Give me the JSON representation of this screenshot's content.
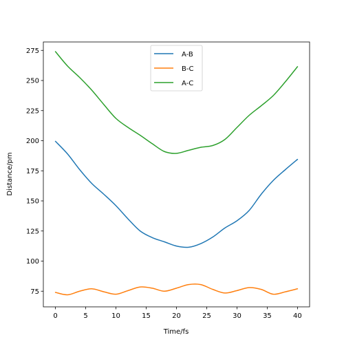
{
  "chart_data": {
    "type": "line",
    "xlabel": "Time/fs",
    "ylabel": "Distance/pm",
    "xlim": [
      -2,
      42
    ],
    "ylim": [
      62,
      282
    ],
    "xticks": [
      0,
      5,
      10,
      15,
      20,
      25,
      30,
      35,
      40
    ],
    "yticks": [
      75,
      100,
      125,
      150,
      175,
      200,
      225,
      250,
      275
    ],
    "grid": false,
    "legend_position": "upper center",
    "x": [
      0,
      2,
      4,
      6,
      8,
      10,
      12,
      14,
      16,
      18,
      20,
      22,
      24,
      26,
      28,
      30,
      32,
      34,
      36,
      38,
      40
    ],
    "series": [
      {
        "name": "A-B",
        "color": "#1f77b4",
        "values": [
          199.5,
          189,
          176,
          164.5,
          155.5,
          146,
          135,
          125,
          119.5,
          116,
          112.5,
          111.5,
          114.5,
          120,
          127.5,
          133.5,
          142,
          155.5,
          167,
          176,
          184.5
        ]
      },
      {
        "name": "B-C",
        "color": "#ff7f0e",
        "values": [
          74,
          72,
          75,
          77,
          74.5,
          72.5,
          75.5,
          78.5,
          77.5,
          75,
          77.5,
          80.5,
          80.5,
          76.5,
          73.5,
          75.5,
          78,
          76.5,
          72.5,
          74.5,
          77
        ]
      },
      {
        "name": "A-C",
        "color": "#2ca02c",
        "values": [
          274,
          262,
          252.5,
          242,
          230,
          218.5,
          211,
          204.5,
          197.5,
          191,
          189.5,
          192,
          194.5,
          196,
          201,
          211,
          221,
          229,
          237.5,
          249,
          261.5
        ]
      }
    ]
  }
}
